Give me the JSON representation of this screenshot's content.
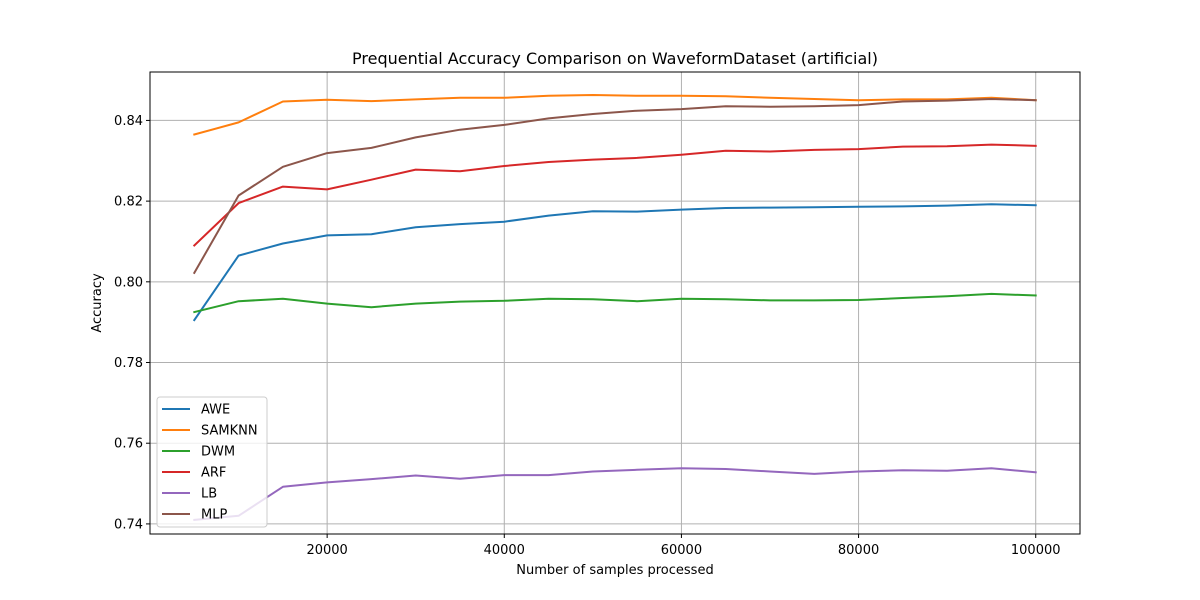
{
  "chart_data": {
    "type": "line",
    "title": "Prequential Accuracy Comparison on WaveformDataset (artificial)",
    "xlabel": "Number of samples processed",
    "ylabel": "Accuracy",
    "xlim": [
      0,
      105000
    ],
    "ylim": [
      0.7375,
      0.852
    ],
    "x_ticks": [
      20000,
      40000,
      60000,
      80000,
      100000
    ],
    "x_tick_labels": [
      "20000",
      "40000",
      "60000",
      "80000",
      "100000"
    ],
    "y_ticks": [
      0.74,
      0.76,
      0.78,
      0.8,
      0.82,
      0.84
    ],
    "y_tick_labels": [
      "0.74",
      "0.76",
      "0.78",
      "0.80",
      "0.82",
      "0.84"
    ],
    "grid": true,
    "legend_position": "lower-left",
    "x": [
      5000,
      10000,
      15000,
      20000,
      25000,
      30000,
      35000,
      40000,
      45000,
      50000,
      55000,
      60000,
      65000,
      70000,
      75000,
      80000,
      85000,
      90000,
      95000,
      100000
    ],
    "series": [
      {
        "name": "AWE",
        "color": "#1f77b4",
        "values": [
          0.7905,
          0.8065,
          0.8095,
          0.8115,
          0.8118,
          0.8135,
          0.8143,
          0.8149,
          0.8164,
          0.8175,
          0.8174,
          0.8179,
          0.8183,
          0.8184,
          0.8185,
          0.8186,
          0.8187,
          0.8189,
          0.8192,
          0.819
        ]
      },
      {
        "name": "SAMKNN",
        "color": "#ff7f0e",
        "values": [
          0.8365,
          0.8395,
          0.8447,
          0.8451,
          0.8448,
          0.8452,
          0.8456,
          0.8456,
          0.8461,
          0.8463,
          0.8461,
          0.8461,
          0.846,
          0.8456,
          0.8453,
          0.845,
          0.8452,
          0.8452,
          0.8456,
          0.845
        ]
      },
      {
        "name": "DWM",
        "color": "#2ca02c",
        "values": [
          0.7925,
          0.7952,
          0.7958,
          0.7946,
          0.7937,
          0.7946,
          0.7951,
          0.7953,
          0.7958,
          0.7957,
          0.7952,
          0.7958,
          0.7957,
          0.7954,
          0.7954,
          0.7955,
          0.796,
          0.7964,
          0.797,
          0.7966
        ]
      },
      {
        "name": "ARF",
        "color": "#d62728",
        "values": [
          0.809,
          0.8195,
          0.8236,
          0.8229,
          0.8253,
          0.8278,
          0.8274,
          0.8287,
          0.8297,
          0.8303,
          0.8307,
          0.8315,
          0.8325,
          0.8323,
          0.8327,
          0.8329,
          0.8335,
          0.8336,
          0.834,
          0.8337
        ]
      },
      {
        "name": "LB",
        "color": "#9467bd",
        "values": [
          0.741,
          0.742,
          0.7492,
          0.7503,
          0.7511,
          0.752,
          0.7512,
          0.7521,
          0.7521,
          0.753,
          0.7534,
          0.7538,
          0.7536,
          0.753,
          0.7524,
          0.753,
          0.7533,
          0.7532,
          0.7538,
          0.7528
        ]
      },
      {
        "name": "MLP",
        "color": "#8c564b",
        "values": [
          0.8022,
          0.8214,
          0.8285,
          0.8319,
          0.8332,
          0.8358,
          0.8377,
          0.8389,
          0.8405,
          0.8416,
          0.8424,
          0.8428,
          0.8435,
          0.8434,
          0.8435,
          0.8438,
          0.8447,
          0.8449,
          0.8453,
          0.845
        ]
      }
    ]
  }
}
